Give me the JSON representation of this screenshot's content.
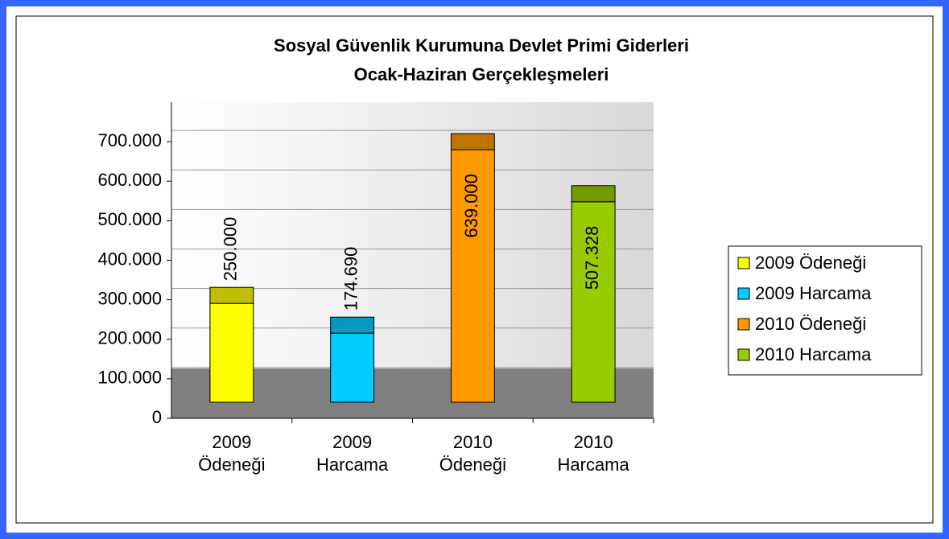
{
  "chart_data": {
    "type": "bar",
    "title": "Sosyal Güvenlik Kurumuna Devlet Primi Giderleri",
    "subtitle": "Ocak-Haziran Gerçekleşmeleri",
    "categories": [
      "2009 Ödeneği",
      "2009 Harcama",
      "2010 Ödeneği",
      "2010 Harcama"
    ],
    "values": [
      250000,
      174690,
      639000,
      507328
    ],
    "value_labels": [
      "250.000",
      "174.690",
      "639.000",
      "507.328"
    ],
    "colors": [
      "#ffff00",
      "#00ccff",
      "#ff9900",
      "#99cc00"
    ],
    "ylim": [
      0,
      800000
    ],
    "yticks": [
      0,
      {
        "value": 100000,
        "label": "100.000"
      },
      {
        "value": 200000,
        "label": "200.000"
      },
      {
        "value": 300000,
        "label": "300.000"
      },
      {
        "value": 400000,
        "label": "400.000"
      },
      {
        "value": 500000,
        "label": "500.000"
      },
      {
        "value": 600000,
        "label": "600.000"
      },
      {
        "value": 700000,
        "label": "700.000"
      }
    ],
    "grid": true,
    "legend": "right"
  }
}
